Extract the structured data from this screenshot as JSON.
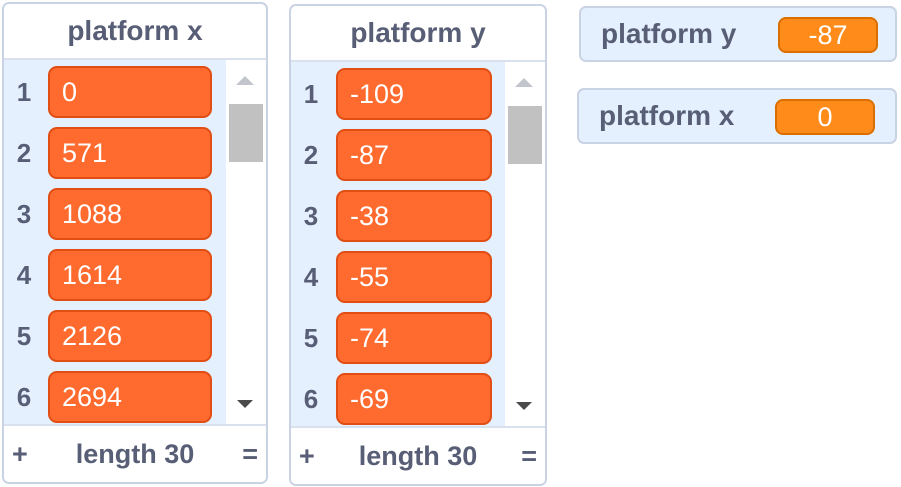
{
  "lists": [
    {
      "name": "platform x",
      "items": [
        {
          "index": "1",
          "value": "0"
        },
        {
          "index": "2",
          "value": "571"
        },
        {
          "index": "3",
          "value": "1088"
        },
        {
          "index": "4",
          "value": "1614"
        },
        {
          "index": "5",
          "value": "2126"
        },
        {
          "index": "6",
          "value": "2694"
        }
      ],
      "footer": {
        "add": "+",
        "length_label": "length 30",
        "resize": "="
      }
    },
    {
      "name": "platform y",
      "items": [
        {
          "index": "1",
          "value": "-109"
        },
        {
          "index": "2",
          "value": "-87"
        },
        {
          "index": "3",
          "value": "-38"
        },
        {
          "index": "4",
          "value": "-55"
        },
        {
          "index": "5",
          "value": "-74"
        },
        {
          "index": "6",
          "value": "-69"
        }
      ],
      "footer": {
        "add": "+",
        "length_label": "length 30",
        "resize": "="
      }
    }
  ],
  "variables": [
    {
      "name": "platform y",
      "value": "-87"
    },
    {
      "name": "platform x",
      "value": "0"
    }
  ],
  "colors": {
    "list_item": "#ff6a2e",
    "variable_value": "#ff8c1a",
    "monitor_background": "#e5f0ff",
    "label_text": "#575e75"
  },
  "icons": {
    "scroll_up": "triangle-up-icon",
    "scroll_down": "triangle-down-icon"
  }
}
